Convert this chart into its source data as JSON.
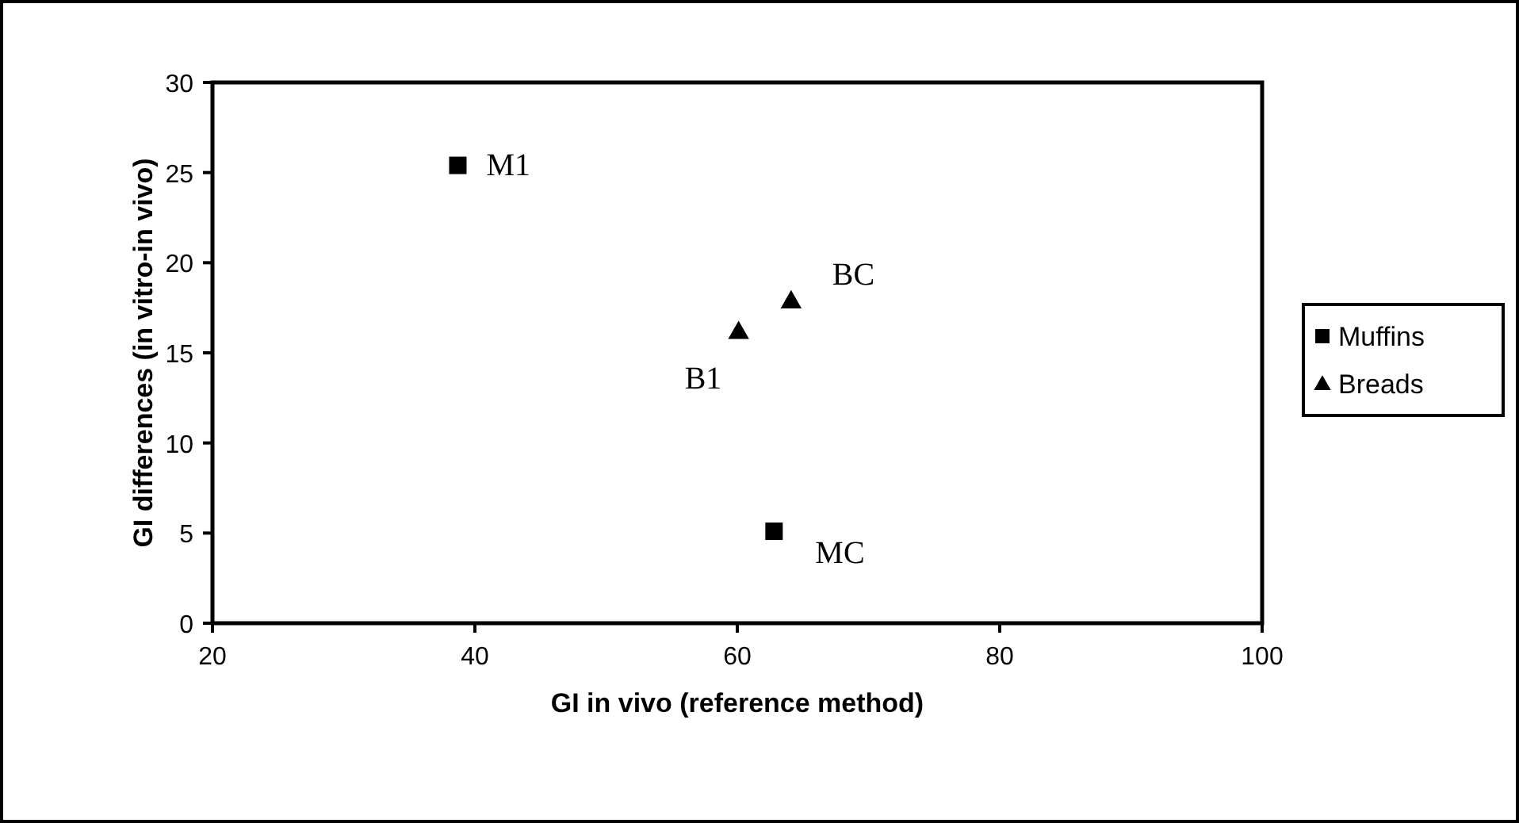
{
  "chart_data": {
    "type": "scatter",
    "xlabel": "GI in vivo (reference method)",
    "ylabel": "GI differences (in vitro-in vivo)",
    "xlim": [
      20,
      100
    ],
    "xticks": [
      20,
      40,
      60,
      80,
      100
    ],
    "ylim": [
      0,
      30
    ],
    "yticks": [
      0,
      5,
      10,
      15,
      20,
      25,
      30
    ],
    "grid": false,
    "legend": "right",
    "series": [
      {
        "name": "Muffins",
        "color": "#000000",
        "marker": "square",
        "x": [
          38.7,
          62.8
        ],
        "values": [
          25.4,
          5.1
        ]
      },
      {
        "name": "Breads",
        "color": "#000000",
        "marker": "triangle",
        "x": [
          60.1,
          64.1
        ],
        "values": [
          16.2,
          17.9
        ]
      }
    ],
    "annotations": [
      {
        "text": "M1",
        "x": 38.7,
        "y": 25.4
      },
      {
        "text": "BC",
        "x": 64.1,
        "y": 17.9
      },
      {
        "text": "B1",
        "x": 60.1,
        "y": 16.2
      },
      {
        "text": "MC",
        "x": 62.8,
        "y": 5.1
      }
    ]
  }
}
